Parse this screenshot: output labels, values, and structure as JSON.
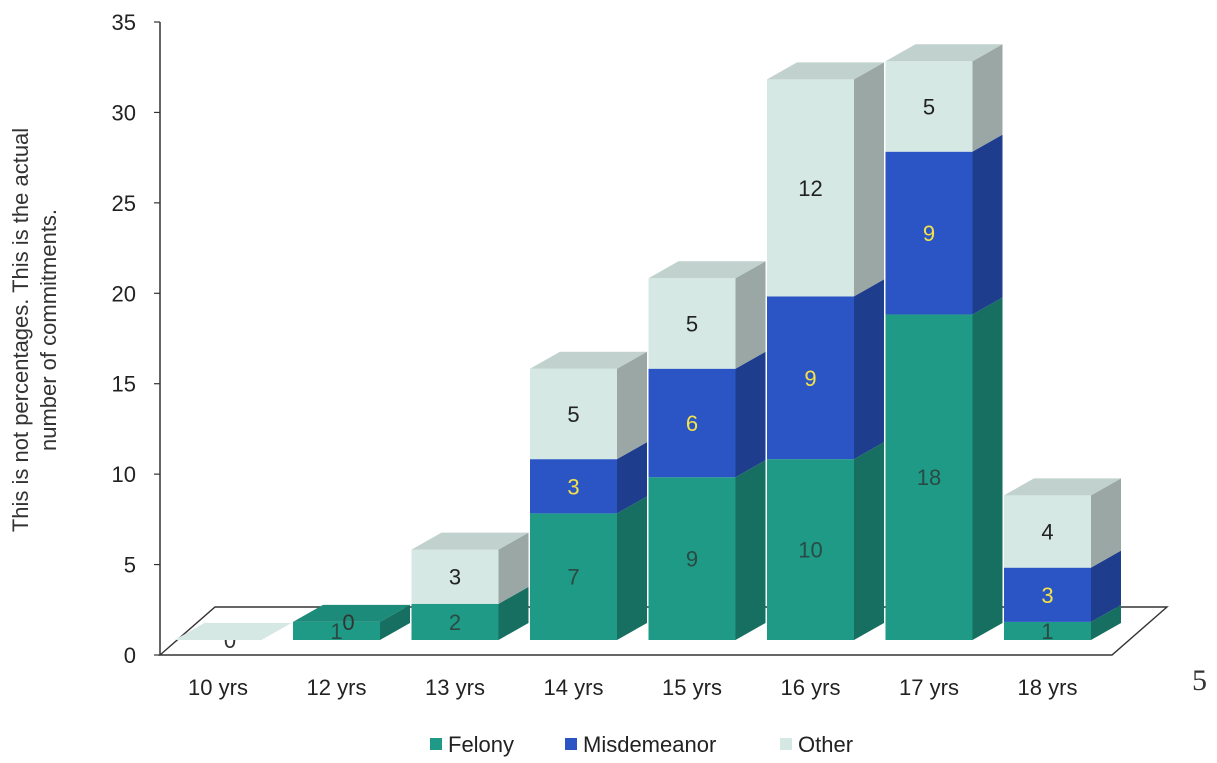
{
  "page_number": "5",
  "colors": {
    "felony": "#1f9a86",
    "misdemeanor": "#2b55c4",
    "other": "#d6e8e4",
    "label_light": "#f5e24a",
    "label_dark": "#2a4a44"
  },
  "chart_data": {
    "type": "bar",
    "stacked": true,
    "three_d": true,
    "title": "",
    "xlabel": "",
    "ylabel_lines": [
      "This is not percentages. This is the actual",
      "number of commitments."
    ],
    "ylim": [
      0,
      35
    ],
    "yticks": [
      "0",
      "5",
      "10",
      "15",
      "20",
      "25",
      "30",
      "35"
    ],
    "categories": [
      "10 yrs",
      "12 yrs",
      "13 yrs",
      "14 yrs",
      "15 yrs",
      "16 yrs",
      "17 yrs",
      "18 yrs"
    ],
    "series": [
      {
        "name": "Felony",
        "values": [
          0,
          1,
          2,
          7,
          9,
          10,
          18,
          1
        ]
      },
      {
        "name": "Misdemeanor",
        "values": [
          0,
          0,
          0,
          3,
          6,
          9,
          9,
          3
        ]
      },
      {
        "name": "Other",
        "values": [
          0,
          0,
          3,
          5,
          5,
          12,
          5,
          4
        ]
      }
    ],
    "data_labels": [
      [
        "",
        "1",
        "2",
        "7",
        "9",
        "10",
        "18",
        "1"
      ],
      [
        "",
        "",
        "",
        "3",
        "6",
        "9",
        "9",
        "3"
      ],
      [
        "0",
        "0",
        "3",
        "5",
        "5",
        "12",
        "5",
        "4"
      ]
    ],
    "legend_position": "bottom",
    "grid": false
  }
}
